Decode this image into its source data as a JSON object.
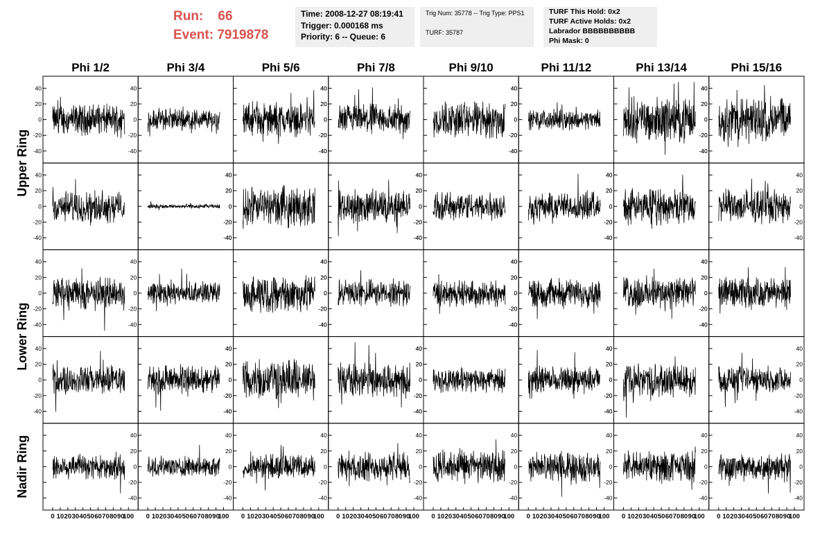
{
  "header": {
    "run_label": "Run:",
    "run_value": "66",
    "event_label": "Event:",
    "event_value": "7919878",
    "time_box": [
      "Time: 2008-12-27 08:19:41",
      "Trigger: 0.000168 ms",
      "Priority: 6 -- Queue: 6"
    ],
    "trig_box": [
      "Trig Num: 35778 -- Trig Type: PPS1",
      "",
      "TURF: 35787"
    ],
    "turf_box": [
      "TURF This Hold: 0x2",
      "TURF Active Holds: 0x2",
      "Labrador BBBBBBBBBB",
      "Phi Mask: 0"
    ]
  },
  "colors": {
    "header_text": "#d9534f",
    "info_bg": "#efefef",
    "trace": "#000000"
  },
  "chart_data": {
    "type": "line",
    "title": "",
    "columns": [
      "Phi 1/2",
      "Phi 3/4",
      "Phi 5/6",
      "Phi 7/8",
      "Phi 9/10",
      "Phi 11/12",
      "Phi 13/14",
      "Phi 15/16"
    ],
    "rows": [
      "Upper Ring",
      "",
      "Lower Ring",
      "",
      "Nadir Ring"
    ],
    "xlim": [
      0,
      100
    ],
    "ylim": [
      -50,
      50
    ],
    "y_ticks": [
      -40,
      -20,
      0,
      20,
      40
    ],
    "x_ticks": [
      0,
      10,
      20,
      30,
      40,
      50,
      60,
      70,
      80,
      90,
      100
    ],
    "x_tick_labels": [
      "0",
      "10",
      "20",
      "30",
      "40",
      "50",
      "60",
      "70",
      "80",
      "90",
      "100"
    ],
    "samples_per_trace": 260,
    "amplitude_grid": [
      [
        14,
        10,
        15,
        14,
        17,
        9,
        20,
        21
      ],
      [
        14,
        2,
        18,
        15,
        13,
        13,
        16,
        15
      ],
      [
        15,
        10,
        17,
        12,
        12,
        13,
        15,
        14
      ],
      [
        13,
        13,
        18,
        16,
        11,
        12,
        15,
        12
      ],
      [
        12,
        9,
        11,
        13,
        15,
        13,
        14,
        13
      ]
    ]
  }
}
